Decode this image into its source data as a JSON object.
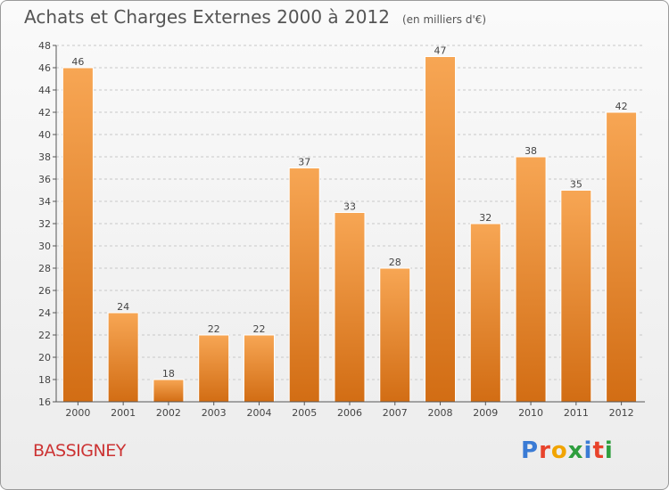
{
  "header": {
    "title": "Achats et Charges Externes 2000 à 2012",
    "unit": "(en milliers d'€)"
  },
  "footer": {
    "commune": "BASSIGNEY",
    "brand": "Proxiti",
    "brand_colors": [
      "#3a7bd5",
      "#e8432b",
      "#f1a400",
      "#2e9e3e",
      "#3a7bd5",
      "#e8432b",
      "#2e9e3e"
    ]
  },
  "colors": {
    "bar_top": "#f7a654",
    "bar_bottom": "#d26d14",
    "bar_edge": "#ffffff",
    "axis": "#555555",
    "grid": "#c8c8c8",
    "text": "#444444"
  },
  "chart_data": {
    "type": "bar",
    "categories": [
      "2000",
      "2001",
      "2002",
      "2003",
      "2004",
      "2005",
      "2006",
      "2007",
      "2008",
      "2009",
      "2010",
      "2011",
      "2012"
    ],
    "values": [
      46,
      24,
      18,
      22,
      22,
      37,
      33,
      28,
      47,
      32,
      38,
      35,
      42
    ],
    "ylim": [
      16,
      48
    ],
    "yticks": [
      16,
      18,
      20,
      22,
      24,
      26,
      28,
      30,
      32,
      34,
      36,
      38,
      40,
      42,
      44,
      46,
      48
    ],
    "grid": "horizontal dashed",
    "data_labels": true
  }
}
